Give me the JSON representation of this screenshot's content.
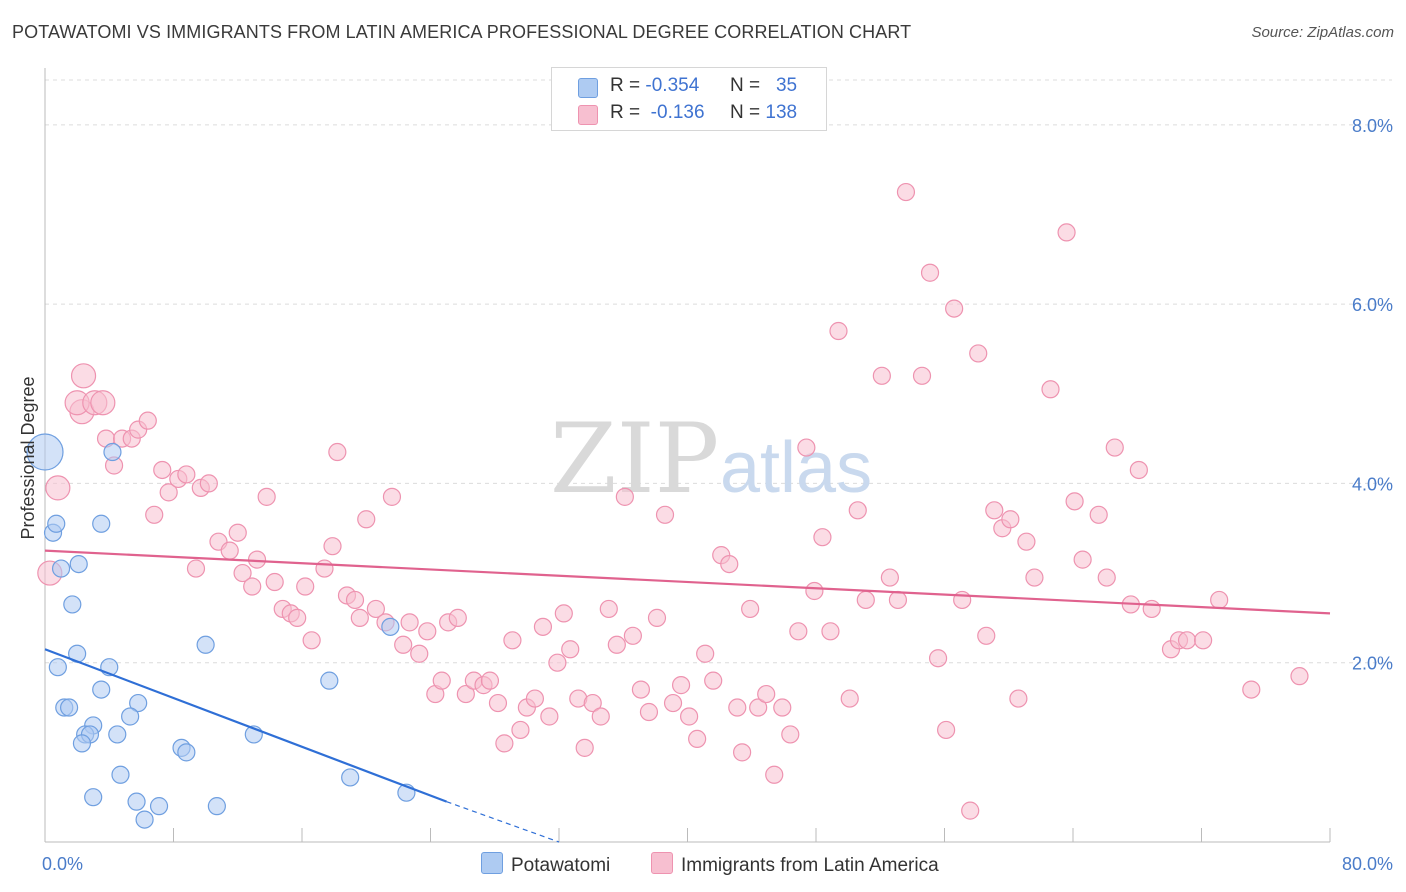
{
  "title": "POTAWATOMI VS IMMIGRANTS FROM LATIN AMERICA PROFESSIONAL DEGREE CORRELATION CHART",
  "source": "Source: ZipAtlas.com",
  "watermark": {
    "zip": "ZIP",
    "atlas": "atlas"
  },
  "legend": {
    "rows": [
      {
        "r_label": "R =",
        "r_value": "-0.354",
        "n_label": "N =",
        "n_value": "35"
      },
      {
        "r_label": "R =",
        "r_value": "-0.136",
        "n_label": "N =",
        "n_value": "138"
      }
    ]
  },
  "bottom_legend": [
    "Potawatomi",
    "Immigrants from Latin America"
  ],
  "colors": {
    "blue_fill": "#aecbf2",
    "blue_stroke": "#6f9fe0",
    "blue_line": "#2f6fd6",
    "pink_fill": "#f7bfd0",
    "pink_stroke": "#ee93b0",
    "pink_line": "#e0628e",
    "grid": "#dcdcdc",
    "tick_text": "#4a7cc9"
  },
  "chart_data": {
    "type": "scatter",
    "title": "POTAWATOMI VS IMMIGRANTS FROM LATIN AMERICA PROFESSIONAL DEGREE CORRELATION CHART",
    "xlabel": "",
    "ylabel": "Professional Degree",
    "xlim": [
      0,
      80
    ],
    "ylim": [
      0,
      8.5
    ],
    "x_tick_labels": [
      "0.0%",
      "80.0%"
    ],
    "y_ticks": [
      2,
      4,
      6,
      8
    ],
    "y_tick_labels": [
      "2.0%",
      "4.0%",
      "6.0%",
      "8.0%"
    ],
    "grid": true,
    "legend_position": "top-center",
    "series": [
      {
        "name": "Potawatomi",
        "color": "#aecbf2",
        "r": -0.354,
        "n": 35,
        "trend": {
          "x0": 0,
          "y0": 2.15,
          "x1": 25,
          "y1": 0.45,
          "dashed_to_x": 32,
          "dashed_to_y": 0.0
        },
        "points": [
          [
            0.0,
            4.35,
            3
          ],
          [
            0.5,
            3.45,
            1
          ],
          [
            0.7,
            3.55,
            1
          ],
          [
            1.0,
            3.05,
            1
          ],
          [
            2.1,
            3.1,
            1
          ],
          [
            1.7,
            2.65,
            1
          ],
          [
            2.0,
            2.1,
            1
          ],
          [
            0.8,
            1.95,
            1
          ],
          [
            4.0,
            1.95,
            1
          ],
          [
            1.2,
            1.5,
            1
          ],
          [
            1.5,
            1.5,
            1
          ],
          [
            3.5,
            1.7,
            1
          ],
          [
            5.8,
            1.55,
            1
          ],
          [
            5.3,
            1.4,
            1
          ],
          [
            3.0,
            1.3,
            1
          ],
          [
            2.5,
            1.2,
            1
          ],
          [
            2.8,
            1.2,
            1
          ],
          [
            4.5,
            1.2,
            1
          ],
          [
            2.3,
            1.1,
            1
          ],
          [
            8.5,
            1.05,
            1
          ],
          [
            8.8,
            1.0,
            1
          ],
          [
            13.0,
            1.2,
            1
          ],
          [
            10.0,
            2.2,
            1
          ],
          [
            17.7,
            1.8,
            1
          ],
          [
            21.5,
            2.4,
            1
          ],
          [
            4.7,
            0.75,
            1
          ],
          [
            19.0,
            0.72,
            1
          ],
          [
            3.0,
            0.5,
            1
          ],
          [
            5.7,
            0.45,
            1
          ],
          [
            7.1,
            0.4,
            1
          ],
          [
            10.7,
            0.4,
            1
          ],
          [
            6.2,
            0.25,
            1
          ],
          [
            22.5,
            0.55,
            1
          ],
          [
            4.2,
            4.35,
            1
          ],
          [
            3.5,
            3.55,
            1
          ]
        ]
      },
      {
        "name": "Immigrants from Latin America",
        "color": "#f7bfd0",
        "r": -0.136,
        "n": 138,
        "trend": {
          "x0": 0,
          "y0": 3.25,
          "x1": 80,
          "y1": 2.55
        },
        "points": [
          [
            0.3,
            3.0,
            2
          ],
          [
            0.8,
            3.95,
            2
          ],
          [
            2.3,
            4.8,
            2
          ],
          [
            2.0,
            4.9,
            2
          ],
          [
            3.1,
            4.9,
            2
          ],
          [
            3.6,
            4.9,
            2
          ],
          [
            2.4,
            5.2,
            2
          ],
          [
            3.8,
            4.5,
            1
          ],
          [
            4.3,
            4.2,
            1
          ],
          [
            4.8,
            4.5,
            1
          ],
          [
            5.4,
            4.5,
            1
          ],
          [
            5.8,
            4.6,
            1
          ],
          [
            6.4,
            4.7,
            1
          ],
          [
            7.3,
            4.15,
            1
          ],
          [
            7.7,
            3.9,
            1
          ],
          [
            8.3,
            4.05,
            1
          ],
          [
            8.8,
            4.1,
            1
          ],
          [
            9.7,
            3.95,
            1
          ],
          [
            10.2,
            4.0,
            1
          ],
          [
            6.8,
            3.65,
            1
          ],
          [
            9.4,
            3.05,
            1
          ],
          [
            10.8,
            3.35,
            1
          ],
          [
            11.5,
            3.25,
            1
          ],
          [
            12.0,
            3.45,
            1
          ],
          [
            12.3,
            3.0,
            1
          ],
          [
            12.9,
            2.85,
            1
          ],
          [
            13.2,
            3.15,
            1
          ],
          [
            13.8,
            3.85,
            1
          ],
          [
            14.3,
            2.9,
            1
          ],
          [
            14.8,
            2.6,
            1
          ],
          [
            15.3,
            2.55,
            1
          ],
          [
            15.7,
            2.5,
            1
          ],
          [
            16.2,
            2.85,
            1
          ],
          [
            16.6,
            2.25,
            1
          ],
          [
            17.4,
            3.05,
            1
          ],
          [
            17.9,
            3.3,
            1
          ],
          [
            18.2,
            4.35,
            1
          ],
          [
            18.8,
            2.75,
            1
          ],
          [
            19.3,
            2.7,
            1
          ],
          [
            19.6,
            2.5,
            1
          ],
          [
            20.0,
            3.6,
            1
          ],
          [
            20.6,
            2.6,
            1
          ],
          [
            21.2,
            2.45,
            1
          ],
          [
            21.6,
            3.85,
            1
          ],
          [
            22.3,
            2.2,
            1
          ],
          [
            22.7,
            2.45,
            1
          ],
          [
            23.3,
            2.1,
            1
          ],
          [
            23.8,
            2.35,
            1
          ],
          [
            24.3,
            1.65,
            1
          ],
          [
            24.7,
            1.8,
            1
          ],
          [
            25.1,
            2.45,
            1
          ],
          [
            25.7,
            2.5,
            1
          ],
          [
            26.2,
            1.65,
            1
          ],
          [
            26.7,
            1.8,
            1
          ],
          [
            27.3,
            1.75,
            1
          ],
          [
            27.7,
            1.8,
            1
          ],
          [
            28.2,
            1.55,
            1
          ],
          [
            28.6,
            1.1,
            1
          ],
          [
            29.1,
            2.25,
            1
          ],
          [
            29.6,
            1.25,
            1
          ],
          [
            30.0,
            1.5,
            1
          ],
          [
            30.5,
            1.6,
            1
          ],
          [
            31.0,
            2.4,
            1
          ],
          [
            31.4,
            1.4,
            1
          ],
          [
            31.9,
            2.0,
            1
          ],
          [
            32.3,
            2.55,
            1
          ],
          [
            32.7,
            2.15,
            1
          ],
          [
            33.2,
            1.6,
            1
          ],
          [
            33.6,
            1.05,
            1
          ],
          [
            34.1,
            1.55,
            1
          ],
          [
            34.6,
            1.4,
            1
          ],
          [
            35.1,
            2.6,
            1
          ],
          [
            35.6,
            2.2,
            1
          ],
          [
            36.1,
            3.85,
            1
          ],
          [
            36.6,
            2.3,
            1
          ],
          [
            37.1,
            1.7,
            1
          ],
          [
            37.6,
            1.45,
            1
          ],
          [
            38.1,
            2.5,
            1
          ],
          [
            38.6,
            3.65,
            1
          ],
          [
            39.1,
            1.55,
            1
          ],
          [
            39.6,
            1.75,
            1
          ],
          [
            40.1,
            1.4,
            1
          ],
          [
            40.6,
            1.15,
            1
          ],
          [
            41.1,
            2.1,
            1
          ],
          [
            41.6,
            1.8,
            1
          ],
          [
            42.1,
            3.2,
            1
          ],
          [
            42.6,
            3.1,
            1
          ],
          [
            43.1,
            1.5,
            1
          ],
          [
            43.4,
            1.0,
            1
          ],
          [
            43.9,
            2.6,
            1
          ],
          [
            44.4,
            1.5,
            1
          ],
          [
            44.9,
            1.65,
            1
          ],
          [
            45.4,
            0.75,
            1
          ],
          [
            45.9,
            1.5,
            1
          ],
          [
            46.4,
            1.2,
            1
          ],
          [
            46.9,
            2.35,
            1
          ],
          [
            47.4,
            4.4,
            1
          ],
          [
            47.9,
            2.8,
            1
          ],
          [
            48.4,
            3.4,
            1
          ],
          [
            48.9,
            2.35,
            1
          ],
          [
            49.4,
            5.7,
            1
          ],
          [
            50.1,
            1.6,
            1
          ],
          [
            50.6,
            3.7,
            1
          ],
          [
            51.1,
            2.7,
            1
          ],
          [
            52.1,
            5.2,
            1
          ],
          [
            52.6,
            2.95,
            1
          ],
          [
            53.1,
            2.7,
            1
          ],
          [
            53.6,
            7.25,
            1
          ],
          [
            54.6,
            5.2,
            1
          ],
          [
            55.1,
            6.35,
            1
          ],
          [
            55.6,
            2.05,
            1
          ],
          [
            56.1,
            1.25,
            1
          ],
          [
            56.6,
            5.95,
            1
          ],
          [
            57.1,
            2.7,
            1
          ],
          [
            57.6,
            0.35,
            1
          ],
          [
            58.1,
            5.45,
            1
          ],
          [
            58.6,
            2.3,
            1
          ],
          [
            59.1,
            3.7,
            1
          ],
          [
            59.6,
            3.5,
            1
          ],
          [
            60.1,
            3.6,
            1
          ],
          [
            60.6,
            1.6,
            1
          ],
          [
            61.1,
            3.35,
            1
          ],
          [
            61.6,
            2.95,
            1
          ],
          [
            62.6,
            5.05,
            1
          ],
          [
            63.6,
            6.8,
            1
          ],
          [
            64.1,
            3.8,
            1
          ],
          [
            64.6,
            3.15,
            1
          ],
          [
            65.6,
            3.65,
            1
          ],
          [
            66.1,
            2.95,
            1
          ],
          [
            66.6,
            4.4,
            1
          ],
          [
            67.6,
            2.65,
            1
          ],
          [
            68.1,
            4.15,
            1
          ],
          [
            68.9,
            2.6,
            1
          ],
          [
            70.1,
            2.15,
            1
          ],
          [
            70.6,
            2.25,
            1
          ],
          [
            71.1,
            2.25,
            1
          ],
          [
            72.1,
            2.25,
            1
          ],
          [
            73.1,
            2.7,
            1
          ],
          [
            75.1,
            1.7,
            1
          ],
          [
            78.1,
            1.85,
            1
          ]
        ]
      }
    ]
  }
}
